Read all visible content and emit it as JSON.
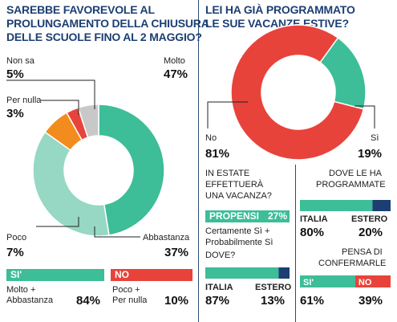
{
  "left": {
    "title_lines": [
      "SAREBBE FAVOREVOLE AL",
      "PROLUNGAMENTO DELLA CHIUSURA",
      "DELLE SCUOLE FINO AL 2 MAGGIO?"
    ],
    "labels": {
      "non_sa": "Non sa",
      "non_sa_val": "5%",
      "molto": "Molto",
      "molto_val": "47%",
      "per_nulla": "Per nulla",
      "per_nulla_val": "3%",
      "poco": "Poco",
      "poco_val": "7%",
      "abbastanza": "Abbastanza",
      "abbastanza_val": "37%"
    },
    "si_bar": "SI'",
    "no_bar": "NO",
    "si_desc_1": "Molto +",
    "si_desc_2": "Abbastanza",
    "si_val": "84%",
    "no_desc_1": "Poco +",
    "no_desc_2": "Per nulla",
    "no_val": "10%"
  },
  "right": {
    "title_lines": [
      "LEI HA GIÀ PROGRAMMATO",
      "LE SUE VACANZE ESTIVE?"
    ],
    "no_label": "No",
    "no_val": "81%",
    "si_label": "Sì",
    "si_val": "19%",
    "q1_lines": [
      "IN ESTATE",
      "EFFETTUERÀ",
      "UNA VACANZA?"
    ],
    "propensi_label": "PROPENSI",
    "propensi_val": "27%",
    "certamente_lines": [
      "Certamente Sì +",
      "Probabilmente Sì"
    ],
    "dove": "DOVE?",
    "italia_label": "ITALIA",
    "estero_label": "ESTERO",
    "dove_italia": "87%",
    "dove_estero": "13%",
    "q2_lines": [
      "DOVE LE HA",
      "PROGRAMMATE"
    ],
    "prog_italia": "80%",
    "prog_estero": "20%",
    "q3_lines": [
      "PENSA DI",
      "CONFERMARLE"
    ],
    "conf_si_label": "SI'",
    "conf_no_label": "NO",
    "conf_si": "61%",
    "conf_no": "39%"
  },
  "colors": {
    "molto": "#3dbd98",
    "abbastanza": "#96d8c3",
    "poco": "#f28c1e",
    "per_nulla": "#e8433b",
    "non_sa": "#c8c8c8",
    "navy": "#1c3f73",
    "right_no": "#e8433b",
    "right_si": "#3dbd98"
  },
  "chart_data": [
    {
      "type": "pie",
      "donut": true,
      "title": "SAREBBE FAVOREVOLE AL PROLUNGAMENTO DELLA CHIUSURA DELLE SCUOLE FINO AL 2 MAGGIO?",
      "slices": [
        {
          "name": "Molto",
          "value": 47
        },
        {
          "name": "Abbastanza",
          "value": 37
        },
        {
          "name": "Poco",
          "value": 7
        },
        {
          "name": "Per nulla",
          "value": 3
        },
        {
          "name": "Non sa",
          "value": 5
        }
      ]
    },
    {
      "type": "pie",
      "donut": true,
      "title": "LEI HA GIÀ PROGRAMMATO LE SUE VACANZE ESTIVE?",
      "slices": [
        {
          "name": "Sì",
          "value": 19
        },
        {
          "name": "No",
          "value": 81
        }
      ]
    },
    {
      "type": "bar",
      "title": "DOVE?",
      "categories": [
        "ITALIA",
        "ESTERO"
      ],
      "values": [
        87,
        13
      ]
    },
    {
      "type": "bar",
      "title": "DOVE LE HA PROGRAMMATE",
      "categories": [
        "ITALIA",
        "ESTERO"
      ],
      "values": [
        80,
        20
      ]
    },
    {
      "type": "bar",
      "title": "PENSA DI CONFERMARLE",
      "categories": [
        "SI'",
        "NO"
      ],
      "values": [
        61,
        39
      ]
    }
  ]
}
